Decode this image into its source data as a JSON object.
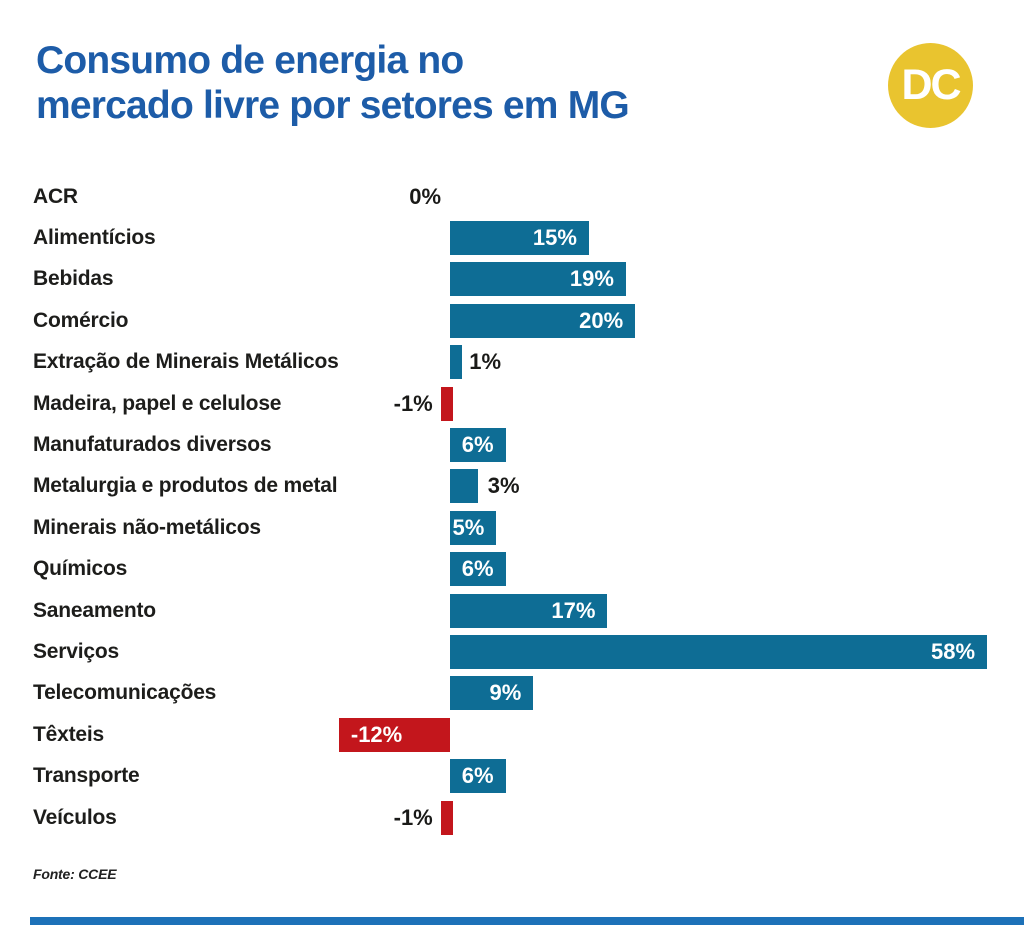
{
  "header": {
    "title_line1": "Consumo de energia no",
    "title_line2": "mercado livre por setores em MG",
    "title_color": "#1d5ca8",
    "logo_text": "DC",
    "logo_bg": "#e9c42f",
    "logo_text_color": "#ffffff"
  },
  "chart_data": {
    "type": "bar",
    "orientation": "horizontal",
    "title": "Consumo de energia no mercado livre por setores em MG",
    "unit": "%",
    "xlim": [
      -12,
      58
    ],
    "grid": false,
    "legend": false,
    "categories": [
      "ACR",
      "Alimentícios",
      "Bebidas",
      "Comércio",
      "Extração de Minerais Metálicos",
      "Madeira, papel e celulose",
      "Manufaturados diversos",
      "Metalurgia e produtos de metal",
      "Minerais não-metálicos",
      "Químicos",
      "Saneamento",
      "Serviços",
      "Telecomunicações",
      "Têxteis",
      "Transporte",
      "Veículos"
    ],
    "values": [
      0,
      15,
      19,
      20,
      1,
      -1,
      6,
      3,
      5,
      6,
      17,
      58,
      9,
      -12,
      6,
      -1
    ],
    "labels": [
      "0%",
      "15%",
      "19%",
      "20%",
      "1%",
      "-1%",
      "6%",
      "3%",
      "5%",
      "6%",
      "17%",
      "58%",
      "9%",
      "-12%",
      "6%",
      "-1%"
    ],
    "positive_color": "#0e6d95",
    "negative_color": "#c3161c",
    "value_text_dark": "#1a1a18",
    "category_text_color": "#1d1d1b"
  },
  "footer": {
    "source": "Fonte: CCEE",
    "rule_color": "#1d71b8"
  }
}
